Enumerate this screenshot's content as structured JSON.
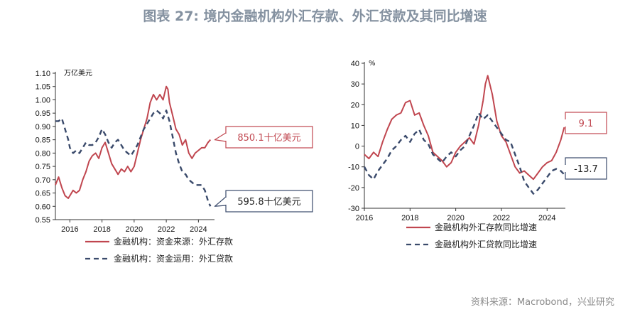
{
  "page": {
    "title": "图表 27: 境内金融机构外汇存款、外汇贷款及其同比增速",
    "source": "资料来源：Macrobond，兴业研究"
  },
  "colors": {
    "red": "#c0464f",
    "navy": "#3a4a6b",
    "axis": "#333333"
  },
  "chart_data": [
    {
      "type": "line",
      "unit_label": "万亿美元",
      "xlim": [
        2015.1,
        2025.0
      ],
      "ylim": [
        0.55,
        1.1
      ],
      "x_ticks": [
        "2016",
        "2018",
        "2020",
        "2022",
        "2024"
      ],
      "y_ticks": [
        "0.55",
        "0.60",
        "0.65",
        "0.70",
        "0.75",
        "0.80",
        "0.85",
        "0.90",
        "0.95",
        "1.00",
        "1.05",
        "1.10"
      ],
      "series": [
        {
          "name": "金融机构：资金来源：外汇存款",
          "color": "#c0464f",
          "dash": "solid",
          "x": [
            2015.1,
            2015.3,
            2015.5,
            2015.7,
            2015.9,
            2016.0,
            2016.2,
            2016.4,
            2016.6,
            2016.8,
            2017.0,
            2017.2,
            2017.4,
            2017.6,
            2017.8,
            2018.0,
            2018.2,
            2018.4,
            2018.6,
            2018.8,
            2019.0,
            2019.2,
            2019.4,
            2019.6,
            2019.8,
            2020.0,
            2020.2,
            2020.4,
            2020.6,
            2020.8,
            2021.0,
            2021.2,
            2021.4,
            2021.6,
            2021.8,
            2022.0,
            2022.1,
            2022.2,
            2022.4,
            2022.6,
            2022.8,
            2023.0,
            2023.2,
            2023.4,
            2023.6,
            2023.8,
            2024.0,
            2024.2,
            2024.4,
            2024.6,
            2024.75
          ],
          "y": [
            0.68,
            0.71,
            0.67,
            0.64,
            0.63,
            0.64,
            0.66,
            0.65,
            0.66,
            0.7,
            0.73,
            0.77,
            0.79,
            0.8,
            0.78,
            0.82,
            0.84,
            0.8,
            0.76,
            0.74,
            0.72,
            0.74,
            0.73,
            0.75,
            0.73,
            0.75,
            0.8,
            0.85,
            0.89,
            0.93,
            0.99,
            1.02,
            1.0,
            1.02,
            1.0,
            1.05,
            1.04,
            0.99,
            0.94,
            0.89,
            0.87,
            0.83,
            0.85,
            0.8,
            0.78,
            0.8,
            0.81,
            0.82,
            0.82,
            0.84,
            0.85
          ]
        },
        {
          "name": "金融机构：资金运用：外汇贷款",
          "color": "#3a4a6b",
          "dash": "dashed",
          "x": [
            2015.1,
            2015.3,
            2015.5,
            2015.7,
            2015.9,
            2016.0,
            2016.2,
            2016.4,
            2016.6,
            2016.8,
            2017.0,
            2017.2,
            2017.4,
            2017.6,
            2017.8,
            2018.0,
            2018.2,
            2018.4,
            2018.6,
            2018.8,
            2019.0,
            2019.2,
            2019.4,
            2019.6,
            2019.8,
            2020.0,
            2020.2,
            2020.4,
            2020.6,
            2020.8,
            2021.0,
            2021.2,
            2021.4,
            2021.6,
            2021.8,
            2022.0,
            2022.2,
            2022.4,
            2022.6,
            2022.8,
            2023.0,
            2023.2,
            2023.4,
            2023.6,
            2023.8,
            2024.0,
            2024.2,
            2024.4,
            2024.6,
            2024.75
          ],
          "y": [
            0.92,
            0.92,
            0.93,
            0.89,
            0.85,
            0.82,
            0.8,
            0.81,
            0.8,
            0.82,
            0.84,
            0.83,
            0.83,
            0.84,
            0.86,
            0.89,
            0.87,
            0.84,
            0.82,
            0.84,
            0.85,
            0.83,
            0.81,
            0.8,
            0.79,
            0.81,
            0.83,
            0.86,
            0.89,
            0.91,
            0.93,
            0.95,
            0.96,
            0.95,
            0.93,
            0.96,
            0.92,
            0.86,
            0.8,
            0.76,
            0.73,
            0.72,
            0.7,
            0.69,
            0.68,
            0.68,
            0.68,
            0.66,
            0.62,
            0.6
          ]
        }
      ],
      "callouts": [
        {
          "text": "850.1十亿美元",
          "series": 0
        },
        {
          "text": "595.8十亿美元",
          "series": 1
        }
      ]
    },
    {
      "type": "line",
      "unit_label": "%",
      "xlim": [
        2016.0,
        2024.8
      ],
      "ylim": [
        -30,
        40
      ],
      "x_ticks": [
        "2016",
        "2018",
        "2020",
        "2022",
        "2024"
      ],
      "y_ticks": [
        "-30",
        "-20",
        "-10",
        "0",
        "10",
        "20",
        "30",
        "40"
      ],
      "series": [
        {
          "name": "金融机构外汇存款同比增速",
          "color": "#c0464f",
          "dash": "solid",
          "x": [
            2016.0,
            2016.2,
            2016.4,
            2016.6,
            2016.8,
            2017.0,
            2017.2,
            2017.4,
            2017.6,
            2017.8,
            2018.0,
            2018.2,
            2018.4,
            2018.6,
            2018.8,
            2019.0,
            2019.2,
            2019.4,
            2019.6,
            2019.8,
            2020.0,
            2020.2,
            2020.4,
            2020.6,
            2020.8,
            2021.0,
            2021.2,
            2021.3,
            2021.4,
            2021.6,
            2021.8,
            2022.0,
            2022.2,
            2022.4,
            2022.6,
            2022.8,
            2023.0,
            2023.2,
            2023.4,
            2023.6,
            2023.8,
            2024.0,
            2024.2,
            2024.4,
            2024.6,
            2024.75
          ],
          "y": [
            -4,
            -6,
            -3,
            -5,
            2,
            8,
            13,
            15,
            16,
            21,
            22,
            15,
            16,
            10,
            5,
            -3,
            -5,
            -7,
            -10,
            -8,
            -3,
            0,
            2,
            4,
            1,
            10,
            22,
            30,
            34,
            25,
            12,
            5,
            2,
            -4,
            -10,
            -13,
            -12,
            -14,
            -16,
            -13,
            -10,
            -8,
            -7,
            -3,
            3,
            9.1
          ]
        },
        {
          "name": "金融机构外汇贷款同比增速",
          "color": "#3a4a6b",
          "dash": "dashed",
          "x": [
            2016.0,
            2016.2,
            2016.4,
            2016.6,
            2016.8,
            2017.0,
            2017.2,
            2017.4,
            2017.6,
            2017.8,
            2018.0,
            2018.2,
            2018.4,
            2018.6,
            2018.8,
            2019.0,
            2019.2,
            2019.4,
            2019.6,
            2019.8,
            2020.0,
            2020.2,
            2020.4,
            2020.6,
            2020.8,
            2021.0,
            2021.2,
            2021.4,
            2021.6,
            2021.8,
            2022.0,
            2022.2,
            2022.4,
            2022.6,
            2022.8,
            2023.0,
            2023.2,
            2023.4,
            2023.6,
            2023.8,
            2024.0,
            2024.2,
            2024.4,
            2024.6,
            2024.75
          ],
          "y": [
            -10,
            -14,
            -16,
            -12,
            -9,
            -6,
            -2,
            0,
            3,
            5,
            2,
            6,
            8,
            3,
            1,
            -4,
            -6,
            -8,
            -5,
            -3,
            -5,
            -2,
            0,
            5,
            10,
            16,
            13,
            15,
            12,
            9,
            6,
            3,
            2,
            -4,
            -10,
            -17,
            -20,
            -23,
            -21,
            -18,
            -15,
            -12,
            -11,
            -12,
            -13.7
          ]
        }
      ],
      "callouts": [
        {
          "text": "9.1",
          "series": 0
        },
        {
          "text": "-13.7",
          "series": 1
        }
      ]
    }
  ]
}
